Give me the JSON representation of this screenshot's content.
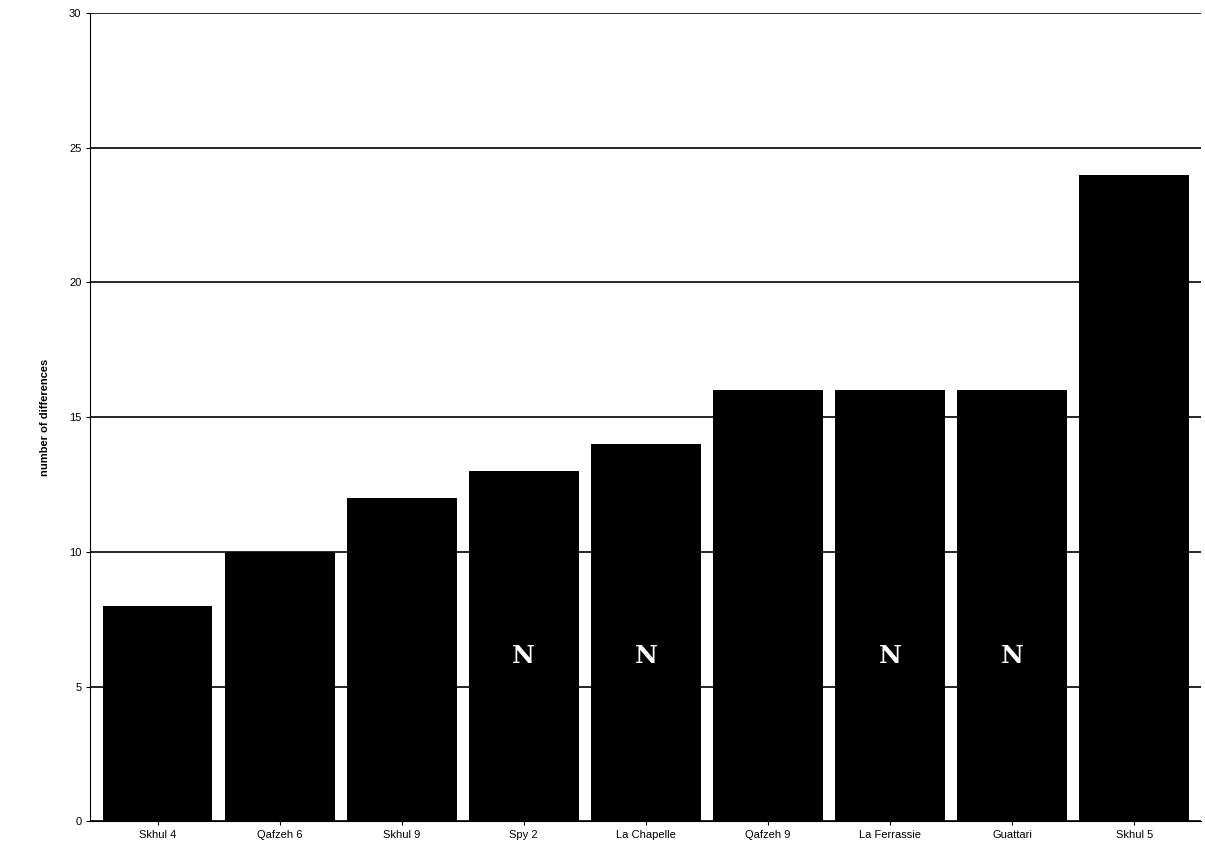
{
  "chart_data": {
    "type": "bar",
    "y_label": "number of differences",
    "categories": [
      "Skhul 4",
      "Qafzeh 6",
      "Skhul 9",
      "Spy 2",
      "La Chapelle",
      "Qafzeh 9",
      "La Ferrassie",
      "Guattari",
      "Skhul 5"
    ],
    "values": [
      8,
      10,
      12,
      13,
      14,
      16,
      16,
      16,
      24
    ],
    "color": "#000000",
    "ylim": [
      0,
      30
    ],
    "yticks": [
      0,
      5,
      10,
      15,
      20,
      25,
      30
    ],
    "grid": true,
    "annotations": [
      {
        "text": "N",
        "category": "Spy 2"
      },
      {
        "text": "N",
        "category": "La Chapelle"
      },
      {
        "text": "N",
        "category": "La Ferrassie"
      },
      {
        "text": "N",
        "category": "Guattari"
      }
    ]
  }
}
